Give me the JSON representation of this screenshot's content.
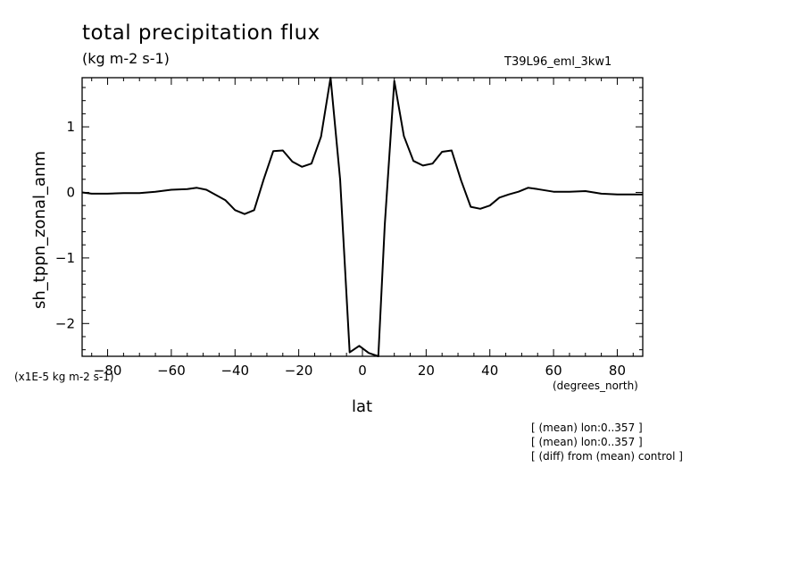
{
  "header": {
    "title": "total precipitation flux",
    "units": "(kg m-2 s-1)",
    "run_name": "T39L96_eml_3kw1",
    "scale_note": "(x1E-5 kg m-2 s-1)"
  },
  "footnotes": [
    "[ (mean) lon:0..357 ]",
    "[ (mean) lon:0..357 ]",
    "[ (diff) from (mean) control ]"
  ],
  "chart_data": {
    "type": "line",
    "title": "total precipitation flux",
    "xlabel": "lat",
    "xunit": "(degrees_north)",
    "ylabel": "sh_tppn_zonal_anm",
    "xlim": [
      -88,
      88
    ],
    "ylim": [
      -2.5,
      1.75
    ],
    "xticks": [
      -80,
      -60,
      -40,
      -20,
      0,
      20,
      40,
      60,
      80
    ],
    "yticks": [
      -2,
      -1,
      0,
      1
    ],
    "xtick_labels": [
      "−80",
      "−60",
      "−40",
      "−20",
      "0",
      "20",
      "40",
      "60",
      "80"
    ],
    "ytick_labels": [
      "−2",
      "−1",
      "0",
      "1"
    ],
    "grid": false,
    "series": [
      {
        "x": [
          -88,
          -85,
          -80,
          -75,
          -70,
          -65,
          -60,
          -55,
          -52,
          -49,
          -46,
          -43,
          -40,
          -37,
          -34,
          -31,
          -28,
          -25,
          -22,
          -19,
          -16,
          -13,
          -10,
          -7,
          -4,
          -1,
          2,
          5,
          7,
          10,
          13,
          16,
          19,
          22,
          25,
          28,
          31,
          34,
          37,
          40,
          43,
          46,
          49,
          52,
          55,
          60,
          65,
          70,
          75,
          80,
          85,
          88
        ],
        "y": [
          0.0,
          -0.02,
          -0.02,
          -0.01,
          -0.01,
          0.01,
          0.04,
          0.05,
          0.07,
          0.04,
          -0.04,
          -0.12,
          -0.27,
          -0.33,
          -0.27,
          0.2,
          0.63,
          0.64,
          0.47,
          0.39,
          0.44,
          0.85,
          1.75,
          0.2,
          -2.44,
          -2.34,
          -2.45,
          -2.55,
          -0.5,
          1.7,
          0.86,
          0.48,
          0.41,
          0.44,
          0.62,
          0.64,
          0.18,
          -0.22,
          -0.25,
          -0.2,
          -0.08,
          -0.03,
          0.01,
          0.07,
          0.05,
          0.01,
          0.01,
          0.02,
          -0.02,
          -0.03,
          -0.03,
          -0.03
        ]
      }
    ]
  }
}
